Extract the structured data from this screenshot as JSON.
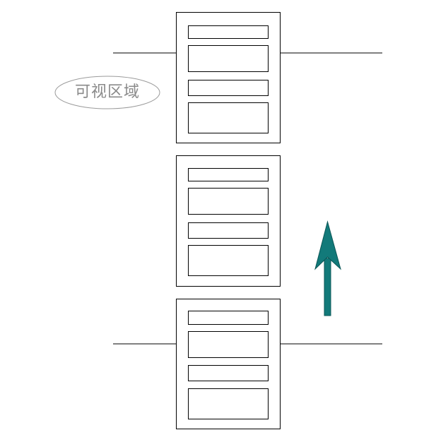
{
  "diagram": {
    "viewport_label": "可视区域",
    "colors": {
      "line": "#000000",
      "label_text": "#8a8a8a",
      "label_outline": "#9a9a9a",
      "arrow": "#127a7a",
      "arrow_outline": "#0b5757"
    },
    "cards": [
      {
        "name": "card-top",
        "rows": 4
      },
      {
        "name": "card-middle",
        "rows": 4
      },
      {
        "name": "card-bottom",
        "rows": 4
      }
    ],
    "scroll_direction": "up"
  }
}
